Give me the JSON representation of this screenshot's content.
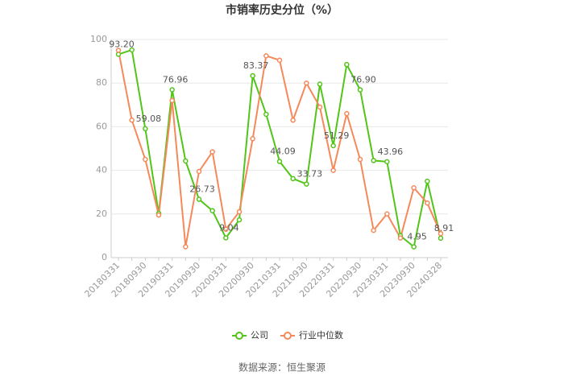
{
  "chart_data": {
    "type": "line",
    "title": "市销率历史分位（%）",
    "categories": [
      "20180331",
      null,
      "20180930",
      null,
      "20190331",
      null,
      "20190930",
      null,
      "20200331",
      null,
      "20200930",
      null,
      "20210331",
      null,
      "20210930",
      null,
      "20220331",
      null,
      "20220930",
      null,
      "20230331",
      null,
      "20230930",
      null,
      "20240328"
    ],
    "series": [
      {
        "name": "公司",
        "color": "#52c41a",
        "values": [
          93.2,
          95.2,
          59.08,
          20.3,
          76.96,
          44.3,
          26.73,
          21.5,
          9.04,
          17.3,
          83.37,
          65.7,
          44.09,
          36.2,
          33.73,
          79.5,
          51.29,
          88.5,
          76.9,
          44.5,
          43.96,
          10,
          4.95,
          35,
          8.91
        ],
        "value_labels": [
          "93.20",
          null,
          "59.08",
          null,
          "76.96",
          null,
          "26.73",
          null,
          "9.04",
          null,
          "83.37",
          null,
          "44.09",
          null,
          "33.73",
          null,
          "51.29",
          null,
          "76.90",
          null,
          "43.96",
          null,
          "4.95",
          null,
          "8.91"
        ]
      },
      {
        "name": "行业中位数",
        "color": "#f5895a",
        "values": [
          95,
          63,
          45,
          19.5,
          72,
          5,
          39.5,
          48.5,
          13,
          21,
          54.5,
          92.5,
          90.5,
          63,
          80,
          69,
          40,
          66,
          45,
          12.5,
          20,
          9,
          32,
          25,
          11
        ]
      }
    ],
    "ylim": [
      0,
      100
    ],
    "yticks": [
      0,
      20,
      40,
      60,
      80,
      100
    ],
    "grid": true,
    "source": "数据来源：恒生聚源"
  }
}
